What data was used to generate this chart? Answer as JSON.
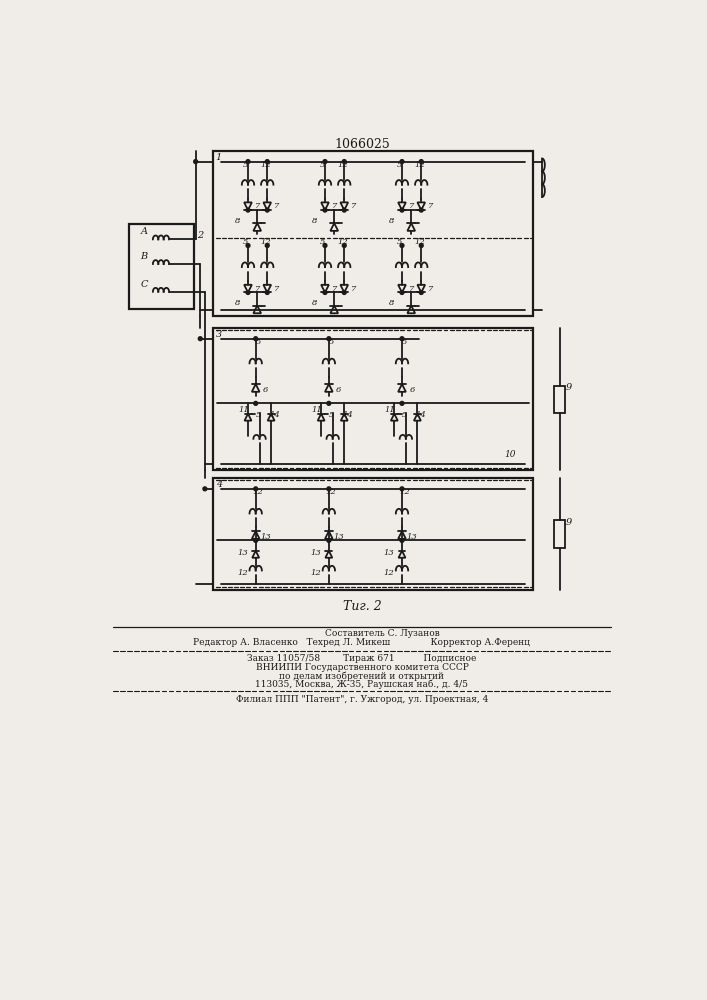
{
  "title": "1066025",
  "fig_label": "Τиг. 2",
  "background_color": "#f0ede8",
  "line_color": "#1a1a1a",
  "text_color": "#1a1a1a",
  "footer_lines": [
    "Составитель С. Лузанов",
    "Редактор А. Власенко   Техред Л. Микеш              Корректор А.Ференц",
    "Заказ 11057/58        Тираж 671          Подписное",
    "ВНИИПИ Государственного комитета СССР",
    "по делам изобретений и открытий",
    "113035, Москва, Ж-35, Раушская наб., д. 4/5",
    "Филиал ППП \"Патент\", г. Ужгород, ул. Проектная, 4"
  ]
}
